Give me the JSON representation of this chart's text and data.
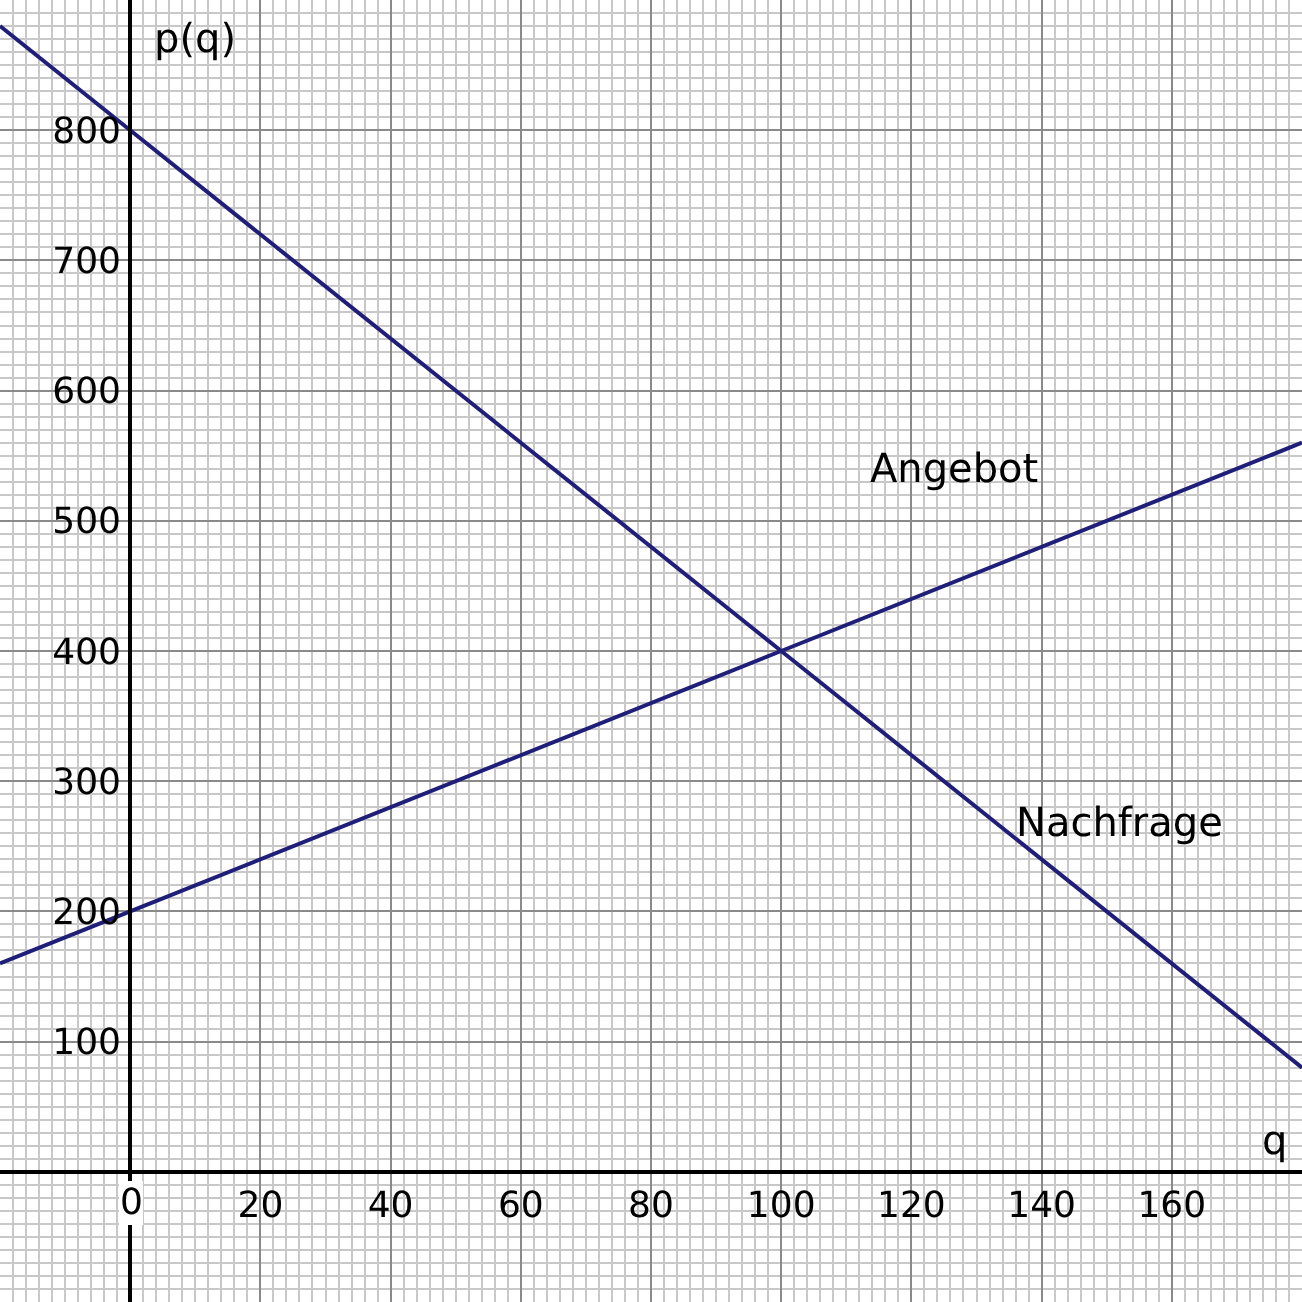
{
  "chart_data": {
    "type": "line",
    "xlabel": "q",
    "ylabel": "p(q)",
    "xlim": [
      -20,
      180
    ],
    "ylim": [
      -100,
      900
    ],
    "xticks": [
      0,
      20,
      40,
      60,
      80,
      100,
      120,
      140,
      160
    ],
    "yticks": [
      100,
      200,
      300,
      400,
      500,
      600,
      700,
      800
    ],
    "grid": true,
    "legend": false,
    "marker": "none",
    "line_style": "solid",
    "series": [
      {
        "name": "Nachfrage",
        "color": "#1f1f7a",
        "x": [
          -20,
          0,
          100,
          180
        ],
        "values": [
          880,
          800,
          400,
          80
        ]
      },
      {
        "name": "Angebot",
        "color": "#1f1f7a",
        "x": [
          -20,
          0,
          100,
          180
        ],
        "values": [
          160,
          200,
          400,
          560
        ]
      }
    ]
  }
}
